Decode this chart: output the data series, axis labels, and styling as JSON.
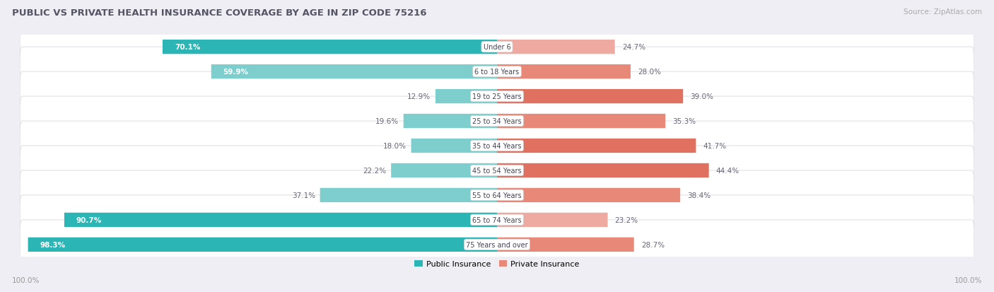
{
  "title": "PUBLIC VS PRIVATE HEALTH INSURANCE COVERAGE BY AGE IN ZIP CODE 75216",
  "source": "Source: ZipAtlas.com",
  "categories": [
    "Under 6",
    "6 to 18 Years",
    "19 to 25 Years",
    "25 to 34 Years",
    "35 to 44 Years",
    "45 to 54 Years",
    "55 to 64 Years",
    "65 to 74 Years",
    "75 Years and over"
  ],
  "public_values": [
    70.1,
    59.9,
    12.9,
    19.6,
    18.0,
    22.2,
    37.1,
    90.7,
    98.3
  ],
  "private_values": [
    24.7,
    28.0,
    39.0,
    35.3,
    41.7,
    44.4,
    38.4,
    23.2,
    28.7
  ],
  "public_color_dark": "#2BB5B5",
  "public_color_light": "#7ECECE",
  "private_color_dark": "#E07060",
  "private_color_mid": "#E88878",
  "private_color_light": "#EEAAA0",
  "bg_color": "#EEEEF4",
  "row_bg_color": "#FFFFFF",
  "row_border_color": "#D8D8E0",
  "title_color": "#555566",
  "value_label_dark": "#FFFFFF",
  "value_label_outside": "#666677",
  "source_color": "#AAAAAA",
  "axis_label_color": "#999999",
  "max_value": 100.0,
  "legend_labels": [
    "Public Insurance",
    "Private Insurance"
  ],
  "legend_pub_color": "#2BB5B5",
  "legend_priv_color": "#E88878"
}
